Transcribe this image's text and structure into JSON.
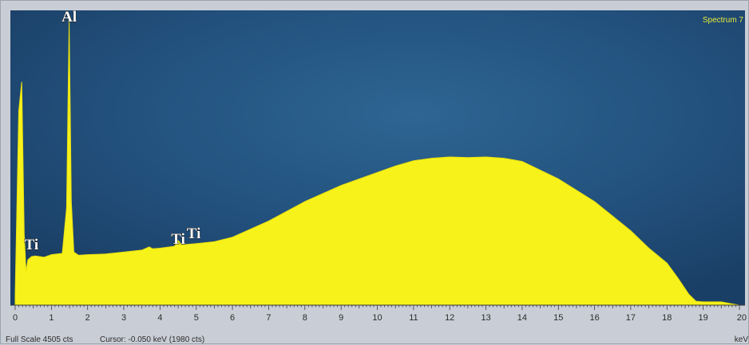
{
  "spectrum_name": "Spectrum 7",
  "footer": {
    "full_scale": "Full Scale 4505 cts",
    "cursor": "Cursor: -0.050 keV (1980 cts)"
  },
  "colors": {
    "plot_background": "#1f4a72",
    "spectrum_fill": "#f7f21a",
    "axis_strip": "#c9ced6"
  },
  "chart_data": {
    "type": "area",
    "title": "",
    "xlabel": "keV",
    "ylabel": "",
    "xlim": [
      0,
      20
    ],
    "ylim": [
      0,
      4505
    ],
    "x_ticks": [
      0,
      1,
      2,
      3,
      4,
      5,
      6,
      7,
      8,
      9,
      10,
      11,
      12,
      13,
      14,
      15,
      16,
      17,
      18,
      19,
      20
    ],
    "grid": false,
    "series": [
      {
        "x": [
          0,
          0.1,
          0.18,
          0.25,
          0.3,
          0.35,
          0.45,
          0.55,
          0.8,
          1.0,
          1.3,
          1.42,
          1.49,
          1.55,
          1.62,
          1.75,
          2.0,
          2.5,
          3.0,
          3.5,
          3.7,
          3.8,
          4.0,
          4.4,
          4.5,
          4.6,
          5.0,
          5.5,
          6.0,
          7.0,
          8.0,
          9.0,
          10.0,
          10.5,
          11.0,
          11.5,
          12.0,
          12.5,
          13.0,
          13.5,
          14.0,
          15.0,
          16.0,
          17.0,
          17.5,
          18.0,
          18.3,
          18.6,
          18.8,
          19.0,
          19.5,
          19.7,
          20
        ],
        "y": [
          150,
          3000,
          3450,
          1100,
          520,
          700,
          750,
          760,
          740,
          780,
          800,
          1500,
          4400,
          1600,
          820,
          770,
          780,
          790,
          820,
          850,
          900,
          870,
          880,
          910,
          1000,
          930,
          950,
          980,
          1050,
          1300,
          1600,
          1850,
          2050,
          2150,
          2230,
          2270,
          2290,
          2280,
          2290,
          2270,
          2220,
          1950,
          1600,
          1150,
          880,
          650,
          420,
          170,
          60,
          50,
          50,
          30,
          0
        ]
      }
    ],
    "annotations": [
      {
        "text": "Al",
        "x": 1.49
      },
      {
        "text": "Ti",
        "x": 0.45
      },
      {
        "text": "Ti",
        "x": 4.5
      },
      {
        "text": "Ti",
        "x": 4.93
      }
    ]
  }
}
